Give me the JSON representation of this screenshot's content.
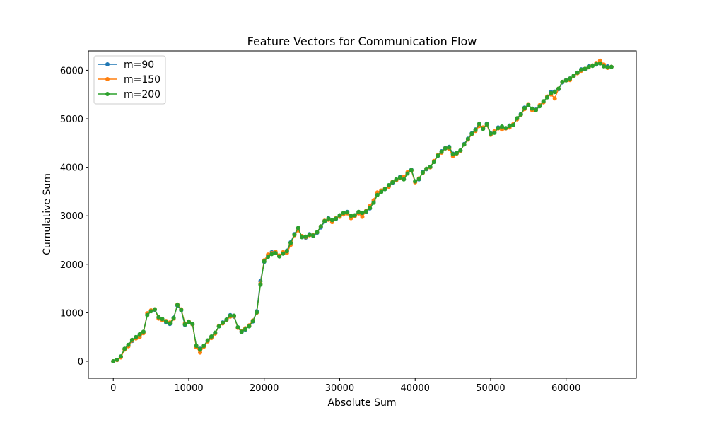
{
  "chart_data": {
    "type": "line",
    "title": "Feature Vectors for Communication Flow",
    "xlabel": "Absolute Sum",
    "ylabel": "Cumulative Sum",
    "xlim": [
      -3300,
      69300
    ],
    "ylim": [
      -350,
      6400
    ],
    "xticks": [
      0,
      10000,
      20000,
      30000,
      40000,
      50000,
      60000
    ],
    "yticks": [
      0,
      1000,
      2000,
      3000,
      4000,
      5000,
      6000
    ],
    "grid": false,
    "legend_position": "upper-left",
    "x": [
      0,
      500,
      1000,
      1500,
      2000,
      2500,
      3000,
      3500,
      4000,
      4500,
      5000,
      5500,
      6000,
      6500,
      7000,
      7500,
      8000,
      8500,
      9000,
      9500,
      10000,
      10500,
      11000,
      11500,
      12000,
      12500,
      13000,
      13500,
      14000,
      14500,
      15000,
      15500,
      16000,
      16500,
      17000,
      17500,
      18000,
      18500,
      19000,
      19500,
      20000,
      20500,
      21000,
      21500,
      22000,
      22500,
      23000,
      23500,
      24000,
      24500,
      25000,
      25500,
      26000,
      26500,
      27000,
      27500,
      28000,
      28500,
      29000,
      29500,
      30000,
      30500,
      31000,
      31500,
      32000,
      32500,
      33000,
      33500,
      34000,
      34500,
      35000,
      35500,
      36000,
      36500,
      37000,
      37500,
      38000,
      38500,
      39000,
      39500,
      40000,
      40500,
      41000,
      41500,
      42000,
      42500,
      43000,
      43500,
      44000,
      44500,
      45000,
      45500,
      46000,
      46500,
      47000,
      47500,
      48000,
      48500,
      49000,
      49500,
      50000,
      50500,
      51000,
      51500,
      52000,
      52500,
      53000,
      53500,
      54000,
      54500,
      55000,
      55500,
      56000,
      56500,
      57000,
      57500,
      58000,
      58500,
      59000,
      59500,
      60000,
      60500,
      61000,
      61500,
      62000,
      62500,
      63000,
      63500,
      64000,
      64500,
      65000,
      65500,
      66000
    ],
    "series": [
      {
        "name": "m=90",
        "color": "#1f77b4",
        "values": [
          0,
          30,
          90,
          250,
          330,
          420,
          490,
          540,
          600,
          960,
          1040,
          1060,
          900,
          860,
          800,
          770,
          900,
          1150,
          1050,
          750,
          800,
          760,
          310,
          260,
          310,
          420,
          500,
          580,
          720,
          800,
          860,
          950,
          920,
          700,
          600,
          650,
          730,
          820,
          1030,
          1650,
          2050,
          2180,
          2250,
          2240,
          2170,
          2230,
          2280,
          2450,
          2620,
          2740,
          2560,
          2550,
          2620,
          2580,
          2650,
          2760,
          2880,
          2950,
          2900,
          2930,
          3000,
          3050,
          3080,
          2980,
          3000,
          3070,
          3050,
          3080,
          3150,
          3280,
          3440,
          3500,
          3550,
          3620,
          3680,
          3740,
          3800,
          3760,
          3880,
          3950,
          3700,
          3750,
          3900,
          3960,
          4000,
          4120,
          4230,
          4330,
          4400,
          4420,
          4280,
          4300,
          4340,
          4480,
          4590,
          4700,
          4780,
          4870,
          4800,
          4900,
          4700,
          4720,
          4820,
          4830,
          4800,
          4860,
          4880,
          5000,
          5100,
          5230,
          5290,
          5200,
          5190,
          5270,
          5350,
          5450,
          5550,
          5560,
          5610,
          5750,
          5800,
          5830,
          5880,
          5950,
          6020,
          6020,
          6080,
          6100,
          6120,
          6150,
          6100,
          6080,
          6070
        ]
      },
      {
        "name": "m=150",
        "color": "#ff7f0e",
        "values": [
          0,
          25,
          80,
          240,
          310,
          430,
          470,
          500,
          580,
          990,
          1050,
          1070,
          880,
          850,
          830,
          800,
          880,
          1170,
          1070,
          780,
          820,
          760,
          290,
          180,
          300,
          410,
          480,
          570,
          730,
          780,
          850,
          920,
          930,
          690,
          620,
          680,
          740,
          840,
          1000,
          1600,
          2080,
          2200,
          2230,
          2260,
          2180,
          2250,
          2230,
          2400,
          2600,
          2700,
          2580,
          2560,
          2600,
          2600,
          2660,
          2780,
          2900,
          2920,
          2870,
          2950,
          2980,
          3030,
          3050,
          2950,
          2990,
          3050,
          2980,
          3100,
          3200,
          3320,
          3480,
          3520,
          3560,
          3600,
          3700,
          3730,
          3780,
          3800,
          3900,
          3930,
          3690,
          3770,
          3880,
          3970,
          4000,
          4130,
          4250,
          4300,
          4390,
          4380,
          4230,
          4280,
          4340,
          4470,
          4570,
          4680,
          4750,
          4850,
          4820,
          4880,
          4670,
          4740,
          4800,
          4780,
          4800,
          4820,
          4890,
          4990,
          5080,
          5200,
          5300,
          5180,
          5180,
          5280,
          5340,
          5460,
          5500,
          5420,
          5620,
          5760,
          5790,
          5800,
          5880,
          5940,
          5990,
          6030,
          6060,
          6100,
          6150,
          6200,
          6120,
          6050,
          6070
        ]
      },
      {
        "name": "m=200",
        "color": "#2ca02c",
        "values": [
          0,
          30,
          100,
          260,
          340,
          440,
          500,
          560,
          610,
          950,
          1030,
          1070,
          910,
          870,
          820,
          780,
          890,
          1160,
          1060,
          760,
          810,
          770,
          320,
          240,
          320,
          430,
          510,
          590,
          720,
          790,
          860,
          940,
          940,
          700,
          610,
          660,
          720,
          830,
          1010,
          1580,
          2060,
          2150,
          2210,
          2230,
          2160,
          2220,
          2270,
          2440,
          2610,
          2750,
          2560,
          2570,
          2610,
          2590,
          2660,
          2780,
          2890,
          2940,
          2910,
          2940,
          3010,
          3060,
          3070,
          3000,
          3010,
          3080,
          3060,
          3090,
          3160,
          3270,
          3430,
          3490,
          3550,
          3630,
          3690,
          3750,
          3790,
          3750,
          3870,
          3940,
          3710,
          3760,
          3890,
          3970,
          4010,
          4110,
          4240,
          4320,
          4390,
          4410,
          4270,
          4290,
          4350,
          4470,
          4580,
          4690,
          4770,
          4900,
          4790,
          4890,
          4690,
          4710,
          4810,
          4840,
          4810,
          4850,
          4870,
          5010,
          5090,
          5220,
          5280,
          5210,
          5180,
          5260,
          5360,
          5440,
          5530,
          5550,
          5620,
          5760,
          5790,
          5830,
          5890,
          5950,
          6010,
          6030,
          6070,
          6090,
          6130,
          6140,
          6080,
          6060,
          6070
        ]
      }
    ]
  }
}
